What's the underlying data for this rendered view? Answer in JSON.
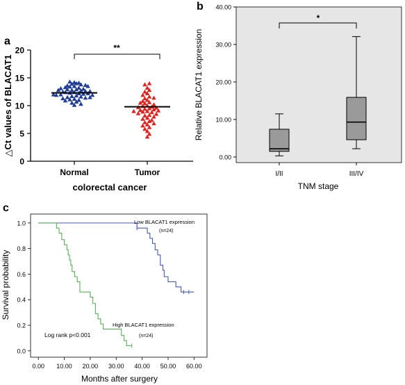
{
  "figure": {
    "panel_a_label": "a",
    "panel_b_label": "b",
    "panel_c_label": "c"
  },
  "chart_data": [
    {
      "panel": "a",
      "type": "scatter",
      "xlabel": "colorectal cancer",
      "ylabel": "△Ct values of BLACAT1",
      "categories": [
        "Normal",
        "Tumor"
      ],
      "ylim": [
        0,
        20
      ],
      "yticks": [
        "0",
        "5",
        "10",
        "15",
        "20"
      ],
      "significance": "**",
      "colors": {
        "Normal": "#1f3c96",
        "Tumor": "#e0221f"
      },
      "series": [
        {
          "name": "Normal",
          "mean": 12.3,
          "values": [
            14.2,
            14.0,
            14.3,
            13.9,
            14.1,
            13.8,
            13.6,
            13.5,
            13.7,
            13.4,
            13.2,
            13.3,
            13.0,
            13.1,
            12.9,
            12.8,
            12.7,
            12.9,
            12.6,
            12.5,
            12.4,
            12.6,
            12.3,
            12.2,
            12.4,
            12.1,
            12.0,
            12.2,
            11.9,
            11.8,
            11.7,
            11.9,
            11.6,
            11.5,
            11.4,
            11.3,
            11.2,
            11.1,
            11.0,
            10.9,
            10.7,
            10.5,
            10.3,
            10.1,
            13.5,
            12.0,
            11.5,
            12.8
          ]
        },
        {
          "name": "Tumor",
          "mean": 9.8,
          "values": [
            14.0,
            13.8,
            13.2,
            12.8,
            12.5,
            12.2,
            11.9,
            11.6,
            11.3,
            11.0,
            10.8,
            10.6,
            10.4,
            10.2,
            10.0,
            9.9,
            9.8,
            9.7,
            9.6,
            9.5,
            9.4,
            9.3,
            9.2,
            9.1,
            9.0,
            8.9,
            8.8,
            8.6,
            8.5,
            8.3,
            8.2,
            8.0,
            7.8,
            7.6,
            7.4,
            7.2,
            7.0,
            6.8,
            6.6,
            6.4,
            6.1,
            5.8,
            5.4,
            4.9,
            4.4,
            10.5,
            9.0,
            11.4
          ]
        }
      ]
    },
    {
      "panel": "b",
      "type": "box",
      "xlabel": "TNM stage",
      "ylabel": "Relative BLACAT1 expression",
      "categories": [
        "I/II",
        "III/IV"
      ],
      "ylim": [
        -1.5,
        40
      ],
      "yticks": [
        "0.00",
        "10.00",
        "20.00",
        "30.00",
        "40.00"
      ],
      "significance": "*",
      "boxes": [
        {
          "name": "I/II",
          "min": 0.3,
          "q1": 1.5,
          "median": 2.2,
          "q3": 7.4,
          "max": 11.5
        },
        {
          "name": "III/IV",
          "min": 2.2,
          "q1": 4.6,
          "median": 9.3,
          "q3": 15.9,
          "max": 32.1
        }
      ]
    },
    {
      "panel": "c",
      "type": "line",
      "subtype": "kaplan-meier",
      "xlabel": "Months after surgery",
      "ylabel": "Survival probability",
      "xlim": [
        -3,
        65
      ],
      "ylim": [
        -0.05,
        1.07
      ],
      "xticks": [
        "0.00",
        "10.00",
        "20.00",
        "30.00",
        "40.00",
        "50.00",
        "60.00"
      ],
      "yticks": [
        "0.0",
        "0.2",
        "0.4",
        "0.6",
        "0.8",
        "1.0"
      ],
      "annotation": "Log rank p<0.001",
      "series": [
        {
          "name": "Low BLACAT1 expression",
          "n_label": "(n=24)",
          "color": "#4a58b3",
          "steps": [
            [
              0,
              1.0
            ],
            [
              38,
              0.96
            ],
            [
              42,
              0.92
            ],
            [
              43,
              0.88
            ],
            [
              44,
              0.84
            ],
            [
              45,
              0.79
            ],
            [
              46,
              0.75
            ],
            [
              47,
              0.67
            ],
            [
              48,
              0.63
            ],
            [
              48.5,
              0.58
            ],
            [
              50,
              0.54
            ],
            [
              53,
              0.5
            ],
            [
              55,
              0.46
            ]
          ],
          "end_x": 60,
          "censor_x": [
            38,
            56,
            58
          ]
        },
        {
          "name": "High BLACAT1 expression",
          "n_label": "(n=24)",
          "color": "#5aae5a",
          "steps": [
            [
              0,
              1.0
            ],
            [
              7,
              0.96
            ],
            [
              8,
              0.92
            ],
            [
              9,
              0.87
            ],
            [
              10,
              0.83
            ],
            [
              11,
              0.79
            ],
            [
              11.5,
              0.75
            ],
            [
              12,
              0.71
            ],
            [
              12.5,
              0.67
            ],
            [
              13,
              0.62
            ],
            [
              14,
              0.58
            ],
            [
              15,
              0.54
            ],
            [
              16,
              0.46
            ],
            [
              20,
              0.42
            ],
            [
              21,
              0.37
            ],
            [
              22,
              0.29
            ],
            [
              23,
              0.25
            ],
            [
              24,
              0.21
            ],
            [
              25,
              0.17
            ],
            [
              32,
              0.12
            ],
            [
              33,
              0.08
            ],
            [
              34,
              0.04
            ]
          ],
          "end_x": 36,
          "censor_x": [
            36
          ]
        }
      ]
    }
  ]
}
